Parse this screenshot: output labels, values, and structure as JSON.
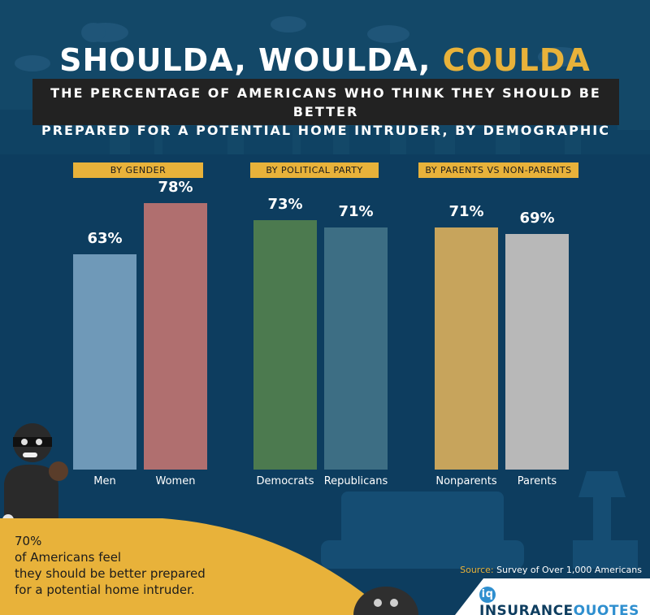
{
  "header": {
    "title_part1": "SHOULDA, WOULDA, ",
    "title_part2": "COULDA",
    "subtitle_line1": "THE PERCENTAGE OF AMERICANS WHO THINK THEY SHOULD BE BETTER",
    "subtitle_line2": "PREPARED FOR A POTENTIAL HOME INTRUDER, BY DEMOGRAPHIC"
  },
  "colors": {
    "background": "#0d3d5f",
    "accent": "#e8b23a",
    "men": "#6f99b8",
    "women": "#b06f6f",
    "democrats": "#4c7a4f",
    "republicans": "#3d6e84",
    "nonparents": "#c7a45c",
    "parents": "#b8b8b8"
  },
  "chart_data": {
    "type": "bar",
    "unit": "%",
    "ylim": [
      0,
      100
    ],
    "groups": [
      {
        "label": "BY GENDER",
        "categories": [
          "Men",
          "Women"
        ],
        "values": [
          63,
          78
        ],
        "value_labels": [
          "63%",
          "78%"
        ]
      },
      {
        "label": "BY POLITICAL PARTY",
        "categories": [
          "Democrats",
          "Republicans"
        ],
        "values": [
          73,
          71
        ],
        "value_labels": [
          "73%",
          "71%"
        ]
      },
      {
        "label": "BY PARENTS VS NON-PARENTS",
        "categories": [
          "Nonparents",
          "Parents"
        ],
        "values": [
          71,
          69
        ],
        "value_labels": [
          "71%",
          "69%"
        ]
      }
    ]
  },
  "note": {
    "line1": "70%",
    "line2": "of Americans feel",
    "line3": "they should be better prepared",
    "line4": "for a potential home intruder."
  },
  "source": {
    "label": "Source:",
    "text": "Survey of Over 1,000 Americans"
  },
  "logo": {
    "icon_glyph": "iq",
    "text_a": "INSURANCE",
    "text_b": "QUOTES"
  }
}
